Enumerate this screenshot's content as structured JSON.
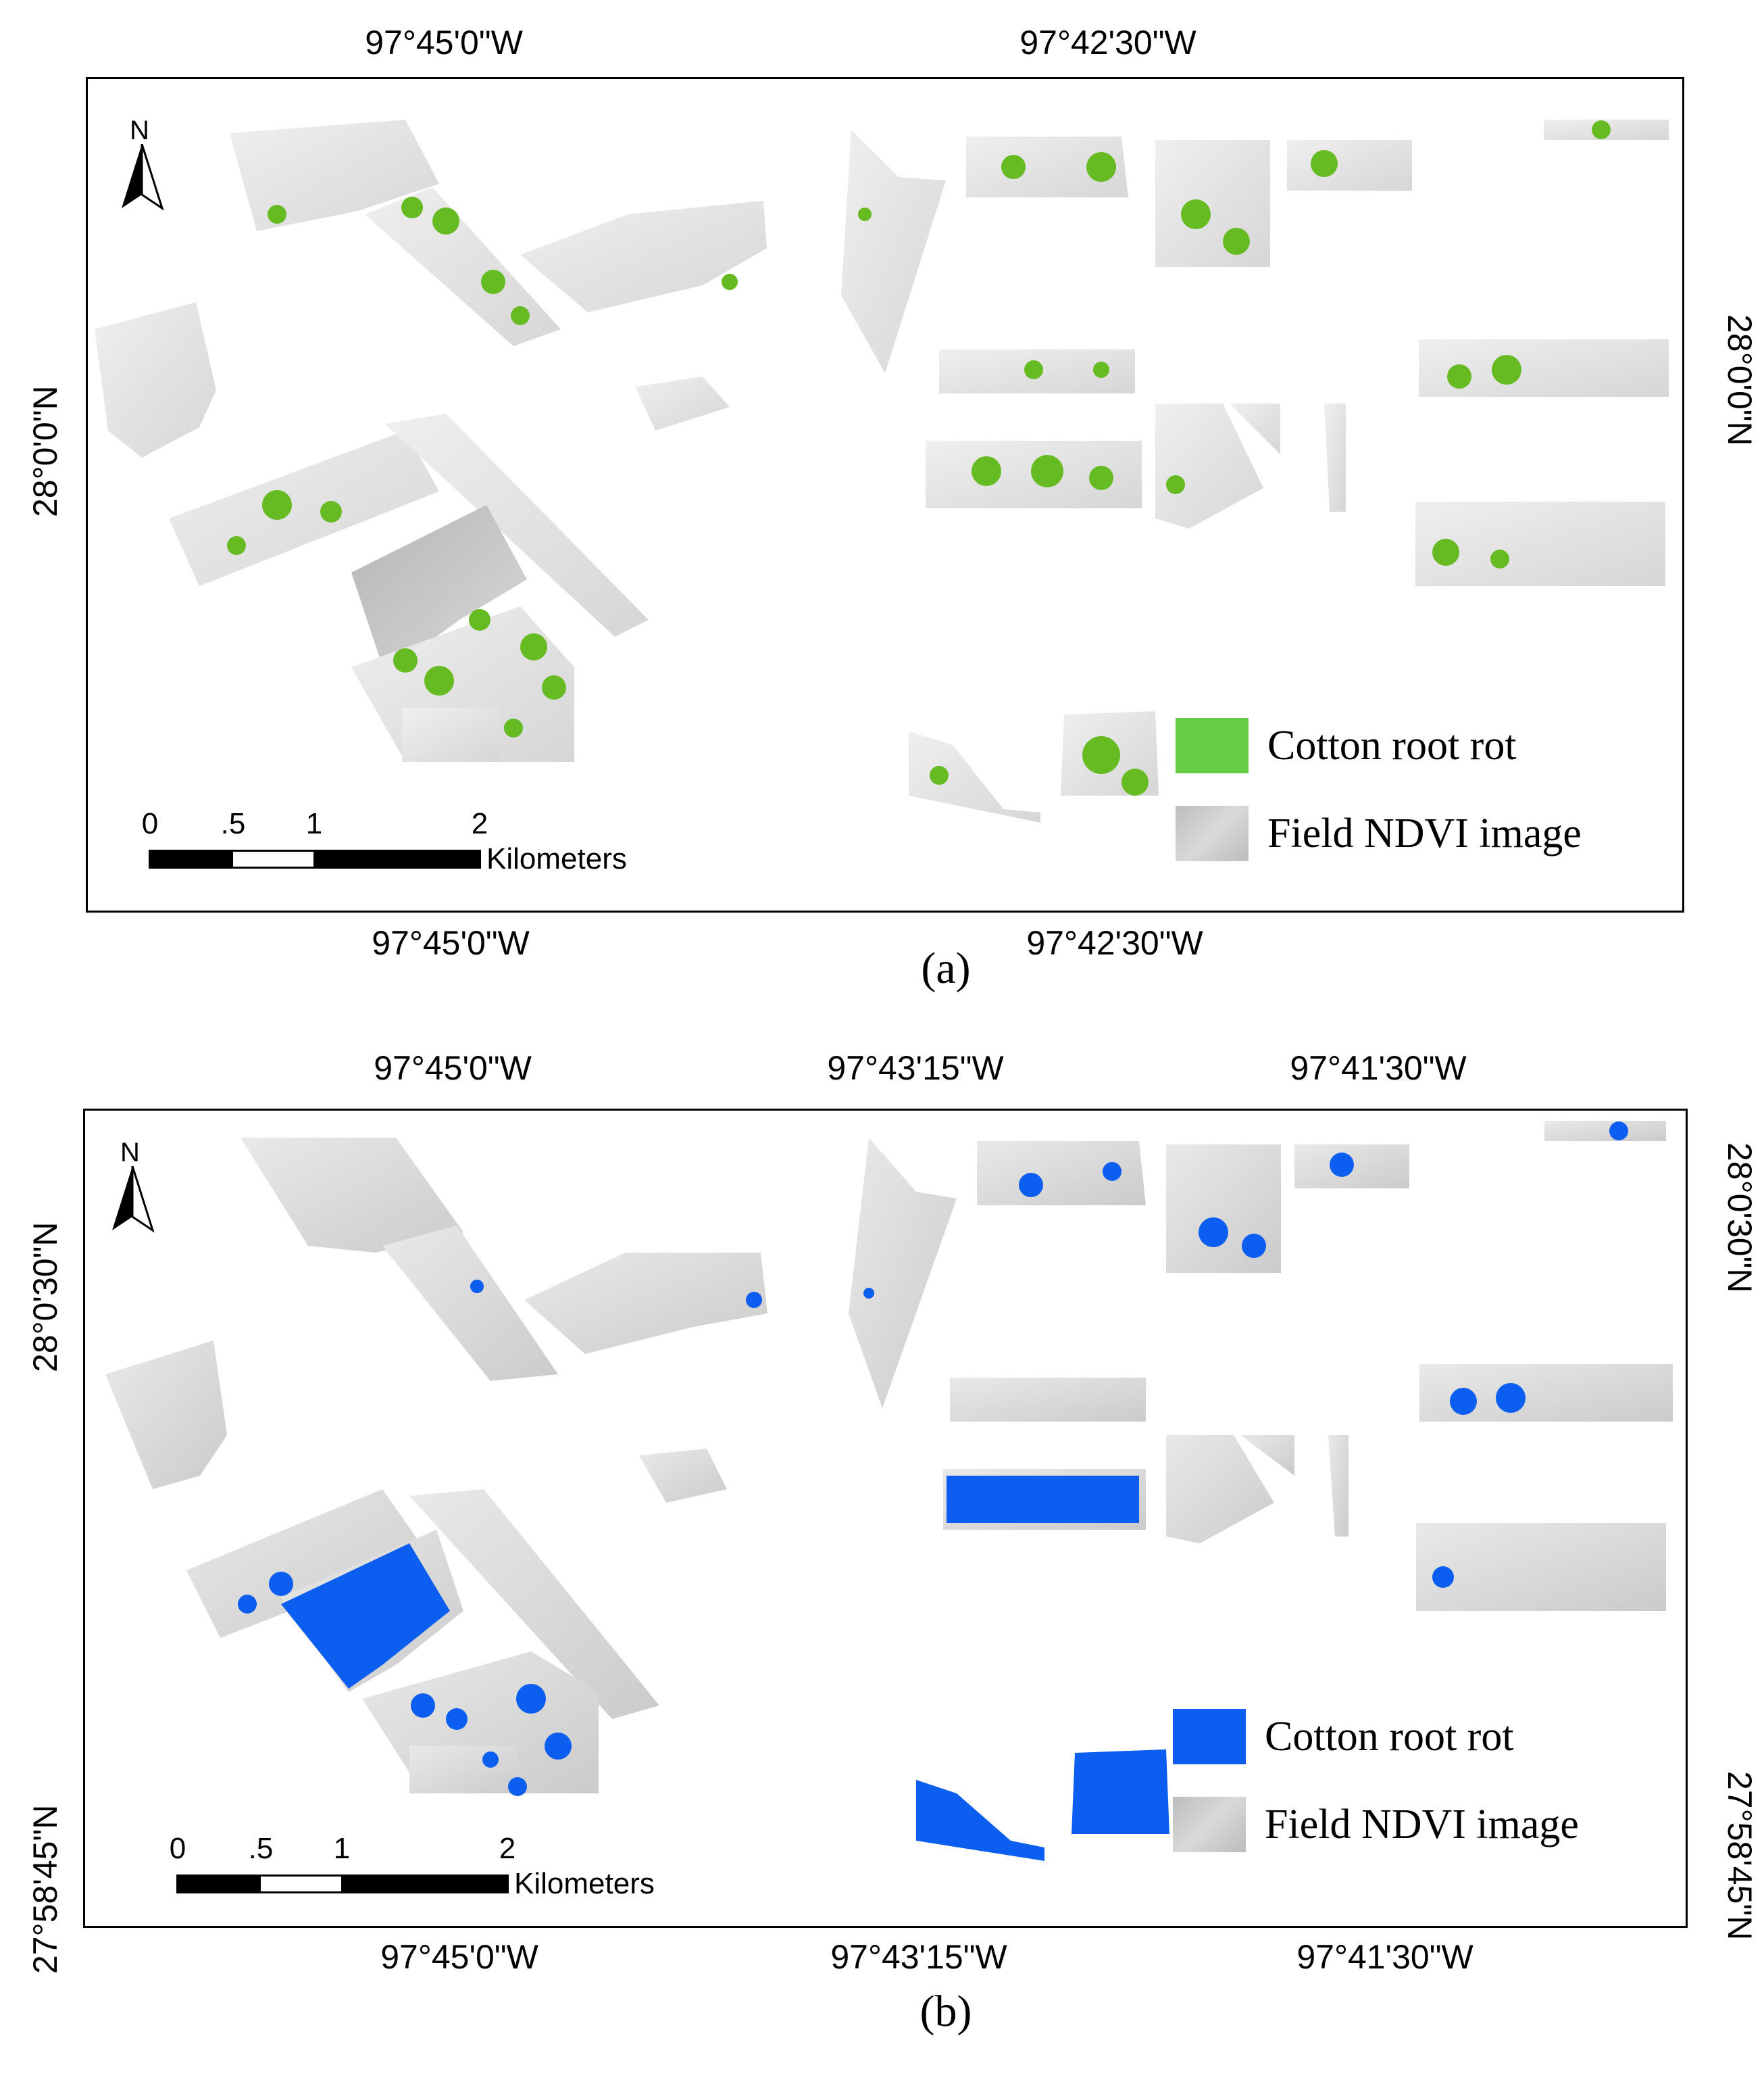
{
  "colors": {
    "rot_green": "#66bb22",
    "rot_blue": "#0b5ef0",
    "ndvi_gray": "#cfcfcf",
    "frame": "#000000"
  },
  "panel_a": {
    "caption": "(a)",
    "top_longitudes": [
      "97°45'0\"W",
      "97°42'30\"W"
    ],
    "bottom_longitudes": [
      "97°45'0\"W",
      "97°42'30\"W"
    ],
    "left_latitudes": [
      "28°0'0\"N"
    ],
    "right_latitudes": [
      "28°0'0\"N"
    ],
    "north_label": "N",
    "legend": {
      "rot_label": "Cotton root rot",
      "ndvi_label": "Field NDVI image",
      "rot_color": "#66bb22"
    },
    "scale": {
      "ticks": [
        "0",
        ".5",
        "1",
        "2"
      ],
      "units": "Kilometers"
    }
  },
  "panel_b": {
    "caption": "(b)",
    "top_longitudes": [
      "97°45'0\"W",
      "97°43'15\"W",
      "97°41'30\"W"
    ],
    "bottom_longitudes": [
      "97°45'0\"W",
      "97°43'15\"W",
      "97°41'30\"W"
    ],
    "left_latitudes": [
      "28°0'30\"N",
      "27°58'45\"N"
    ],
    "right_latitudes": [
      "28°0'30\"N",
      "27°58'45\"N"
    ],
    "north_label": "N",
    "legend": {
      "rot_label": "Cotton root rot",
      "ndvi_label": "Field NDVI image",
      "rot_color": "#0b5ef0"
    },
    "scale": {
      "ticks": [
        "0",
        ".5",
        "1",
        "2"
      ],
      "units": "Kilometers"
    }
  }
}
